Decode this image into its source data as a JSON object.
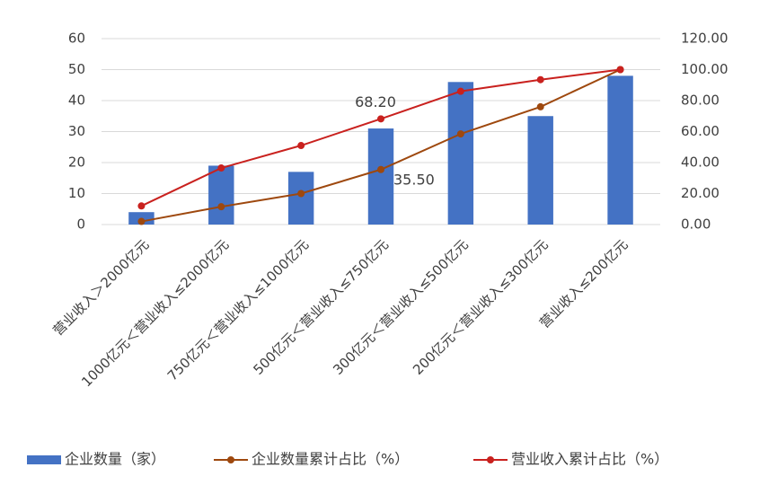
{
  "chart_data": {
    "type": "bar-line-combo",
    "categories": [
      "营业收入＞2000亿元",
      "1000亿元＜营业收入≤2000亿元",
      "750亿元＜营业收入≤1000亿元",
      "500亿元＜营业收入≤750亿元",
      "300亿元＜营业收入≤500亿元",
      "200亿元＜营业收入≤300亿元",
      "营业收入≤200亿元"
    ],
    "series": [
      {
        "name": "企业数量（家）",
        "type": "bar",
        "color": "#4472c4",
        "values": [
          4,
          19,
          17,
          31,
          46,
          35,
          48
        ]
      },
      {
        "name": "企业数量累计占比（%）",
        "type": "line",
        "axis": "y2",
        "color": "#9e480e",
        "values": [
          2,
          11.5,
          20,
          35.5,
          58.5,
          76,
          100
        ],
        "value_labels": [
          null,
          null,
          null,
          "35.50",
          null,
          null,
          null
        ]
      },
      {
        "name": "营业收入累计占比（%）",
        "type": "line",
        "axis": "y2",
        "color": "#c9211e",
        "values": [
          12,
          36.5,
          51,
          68.2,
          86,
          93.5,
          100
        ],
        "value_labels": [
          null,
          null,
          null,
          "68.20",
          null,
          null,
          null
        ]
      }
    ],
    "ylim": [
      0,
      60
    ],
    "yticks": [
      0,
      10,
      20,
      30,
      40,
      50,
      60
    ],
    "y2lim": [
      0,
      120
    ],
    "y2ticks": [
      {
        "value": 0,
        "label": "0.00"
      },
      {
        "value": 20,
        "label": "20.00"
      },
      {
        "value": 40,
        "label": "40.00"
      },
      {
        "value": 60,
        "label": "60.00"
      },
      {
        "value": 80,
        "label": "80.00"
      },
      {
        "value": 100,
        "label": "100.00"
      },
      {
        "value": 120,
        "label": "120.00"
      }
    ],
    "grid": true,
    "legend": "bottom"
  }
}
